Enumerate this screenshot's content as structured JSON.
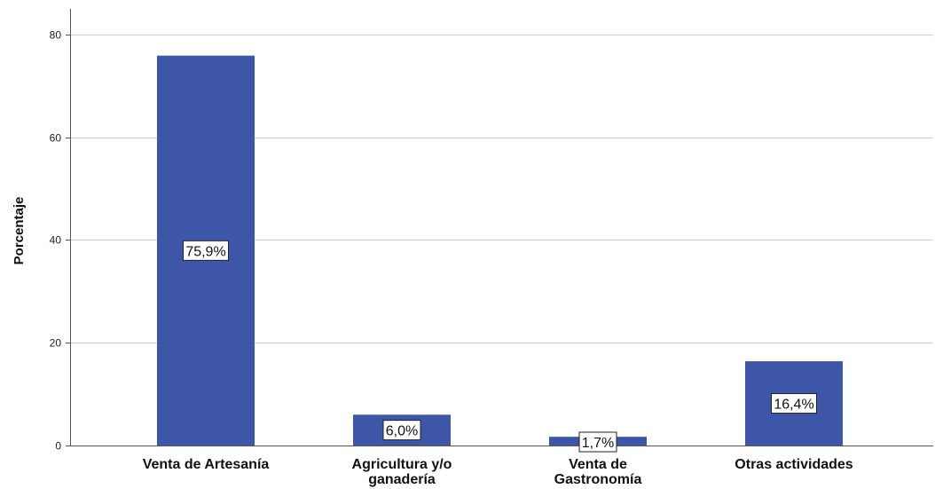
{
  "chart_data": {
    "type": "bar",
    "categories": [
      [
        "Venta de Artesanía"
      ],
      [
        "Agricultura y/o",
        "ganadería"
      ],
      [
        "Venta de",
        "Gastronomía"
      ],
      [
        "Otras actividades"
      ]
    ],
    "values": [
      75.9,
      6.0,
      1.7,
      16.4
    ],
    "data_labels": [
      "75,9%",
      "6,0%",
      "1,7%",
      "16,4%"
    ],
    "ylabel": "Porcentaje",
    "ylim": [
      0,
      85
    ],
    "yticks": [
      0,
      20,
      40,
      60,
      80
    ],
    "grid": true,
    "colors": {
      "bar": "#3e56a8",
      "grid": "#d2d2d2",
      "axis": "#555555"
    }
  }
}
